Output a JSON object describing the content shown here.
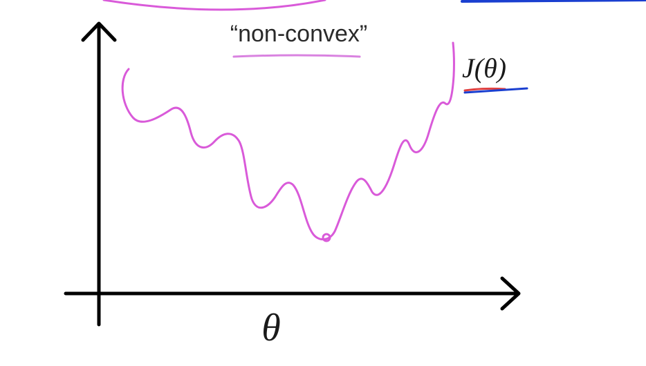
{
  "title": "“non-convex”",
  "curve_label": "J(θ)",
  "x_axis_label": "θ",
  "colors": {
    "curve": "#d95ad9",
    "axes": "#000000",
    "label_underline_blue": "#1a3fd0",
    "label_underline_red": "#e04040",
    "title_underline": "#d982e0"
  },
  "icons": {
    "y_axis_arrow": "arrow-up-icon",
    "x_axis_arrow": "arrow-right-icon"
  }
}
